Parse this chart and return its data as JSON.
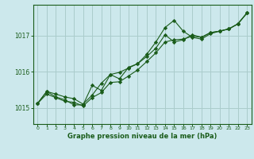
{
  "title": "Graphe pression niveau de la mer (hPa)",
  "background_color": "#cce8ec",
  "grid_color": "#aacccc",
  "line_color": "#1a5c1a",
  "marker_color": "#1a5c1a",
  "xlim": [
    -0.5,
    23.5
  ],
  "ylim": [
    1014.55,
    1017.85
  ],
  "yticks": [
    1015,
    1016,
    1017
  ],
  "xticks": [
    0,
    1,
    2,
    3,
    4,
    5,
    6,
    7,
    8,
    9,
    10,
    11,
    12,
    13,
    14,
    15,
    16,
    17,
    18,
    19,
    20,
    21,
    22,
    23
  ],
  "series1": [
    1015.12,
    1015.45,
    1015.38,
    1015.3,
    1015.25,
    1015.1,
    1015.35,
    1015.68,
    1015.92,
    1015.98,
    1016.1,
    1016.22,
    1016.42,
    1016.65,
    1017.02,
    1016.82,
    1016.88,
    1017.02,
    1016.95,
    1017.08,
    1017.12,
    1017.18,
    1017.32,
    1017.62
  ],
  "series2": [
    1015.12,
    1015.45,
    1015.3,
    1015.22,
    1015.08,
    1015.08,
    1015.62,
    1015.48,
    1015.92,
    1015.8,
    1016.12,
    1016.22,
    1016.48,
    1016.82,
    1017.22,
    1017.42,
    1017.12,
    1016.95,
    1016.9,
    1017.05,
    1017.12,
    1017.18,
    1017.32,
    1017.62
  ],
  "series3": [
    1015.12,
    1015.38,
    1015.28,
    1015.18,
    1015.15,
    1015.05,
    1015.28,
    1015.42,
    1015.7,
    1015.72,
    1015.88,
    1016.05,
    1016.28,
    1016.52,
    1016.82,
    1016.88,
    1016.9,
    1016.98,
    1016.95,
    1017.08,
    1017.12,
    1017.18,
    1017.32,
    1017.62
  ]
}
